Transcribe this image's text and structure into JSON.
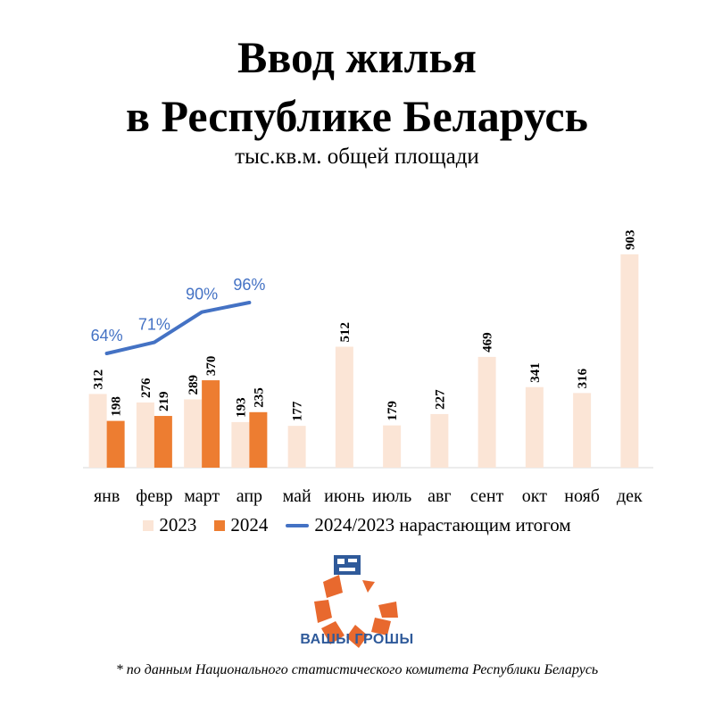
{
  "title_line1": "Ввод жилья",
  "title_line2": "в Республике Беларусь",
  "subtitle": "тыс.кв.м. общей площади",
  "chart_data": {
    "type": "bar",
    "categories": [
      "янв",
      "февр",
      "март",
      "апр",
      "май",
      "июнь",
      "июль",
      "авг",
      "сент",
      "окт",
      "нояб",
      "дек"
    ],
    "series": [
      {
        "name": "2023",
        "type": "bar",
        "color": "#fbe5d6",
        "values": [
          312,
          276,
          289,
          193,
          177,
          512,
          179,
          227,
          469,
          341,
          316,
          903
        ]
      },
      {
        "name": "2024",
        "type": "bar",
        "color": "#ed7d31",
        "values": [
          198,
          219,
          370,
          235,
          null,
          null,
          null,
          null,
          null,
          null,
          null,
          null
        ]
      },
      {
        "name": "2024/2023 нарастающим итогом",
        "type": "line",
        "color": "#4472c4",
        "values": [
          64,
          71,
          90,
          96,
          null,
          null,
          null,
          null,
          null,
          null,
          null,
          null
        ],
        "labels": [
          "64%",
          "71%",
          "90%",
          "96%"
        ]
      }
    ],
    "ylim": [
      0,
      903
    ],
    "legend_position": "bottom",
    "grid": false
  },
  "legend": {
    "item1": "2023",
    "item2": "2024",
    "item3": "2024/2023 нарастающим итогом"
  },
  "logo_text": "ВАШЫ ГРОШЫ",
  "footnote": "* по данным Национального статистического комитета Республики Беларусь"
}
